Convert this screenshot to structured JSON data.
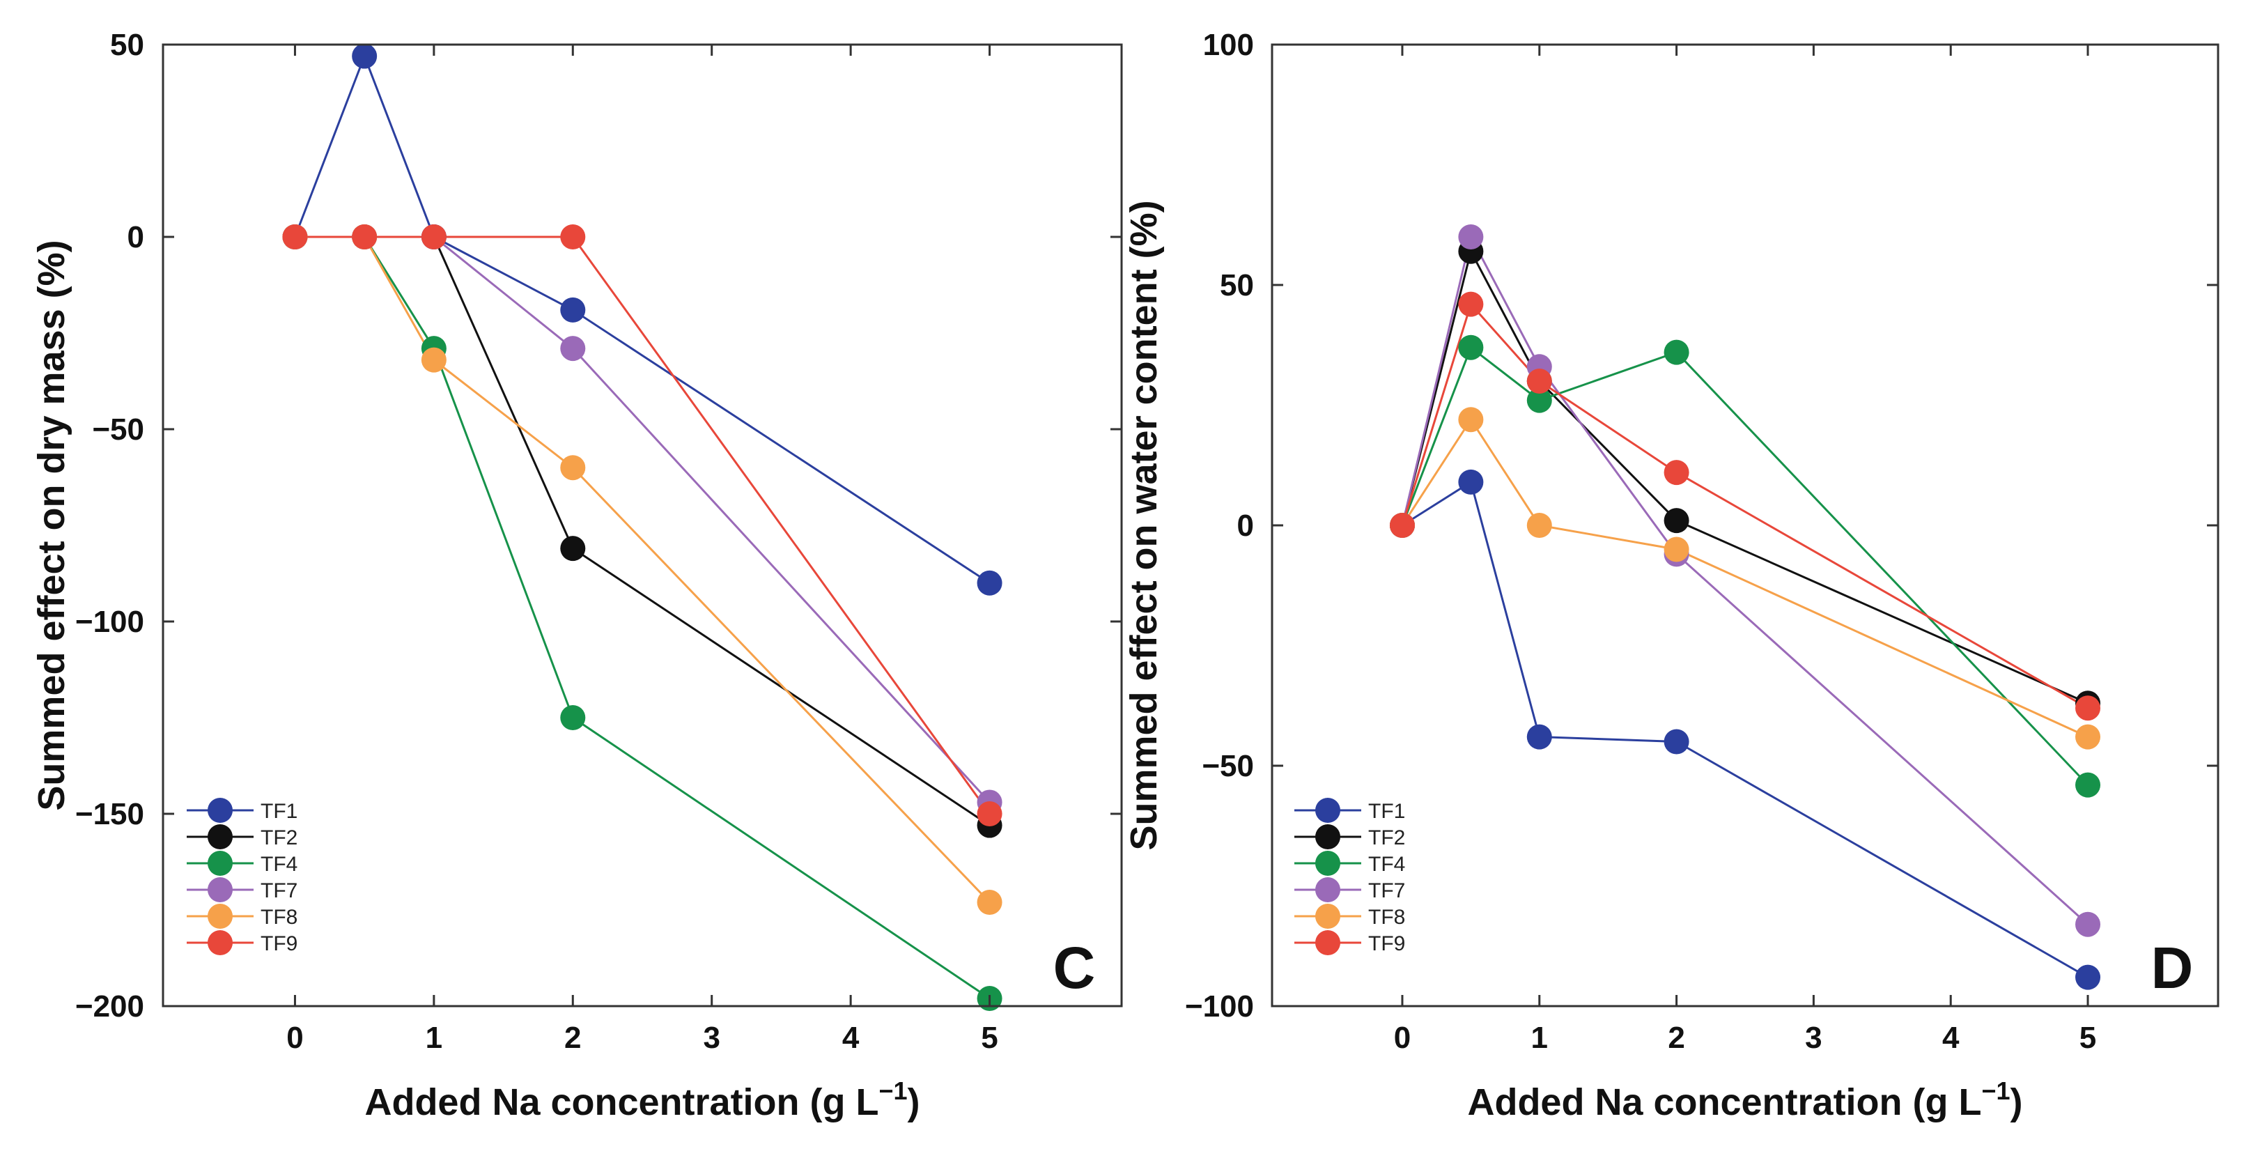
{
  "chart_data": [
    {
      "type": "line",
      "panel_label": "C",
      "xlabel": "Added Na concentration (g L",
      "xlabel_sup": "−1",
      "xlabel_end": ")",
      "ylabel": "Summed effect on dry mass (%)",
      "ylim": [
        -200,
        50
      ],
      "xticks": [
        "0",
        "1",
        "2",
        "3",
        "4",
        "5"
      ],
      "yticks": [
        "50",
        "0",
        "−50",
        "−100",
        "−150",
        "−200"
      ],
      "legend_position": "bottom-left",
      "x": [
        0,
        0.5,
        1,
        2,
        5
      ],
      "series": [
        {
          "name": "TF1",
          "color": "#2b3f9e",
          "values": [
            0,
            47,
            0,
            -19,
            -90
          ]
        },
        {
          "name": "TF2",
          "color": "#111111",
          "values": [
            0,
            0,
            0,
            -81,
            -153
          ]
        },
        {
          "name": "TF4",
          "color": "#16924a",
          "values": [
            0,
            0,
            -29,
            -125,
            -198
          ]
        },
        {
          "name": "TF7",
          "color": "#9a6ab8",
          "values": [
            0,
            0,
            0,
            -29,
            -147
          ]
        },
        {
          "name": "TF8",
          "color": "#f6a14a",
          "values": [
            0,
            0,
            -32,
            -60,
            -173
          ]
        },
        {
          "name": "TF9",
          "color": "#e8473a",
          "values": [
            0,
            0,
            0,
            0,
            -150
          ]
        }
      ]
    },
    {
      "type": "line",
      "panel_label": "D",
      "xlabel": "Added Na concentration (g L",
      "xlabel_sup": "−1",
      "xlabel_end": ")",
      "ylabel": "Summed effect on water content (%)",
      "ylim": [
        -100,
        100
      ],
      "xticks": [
        "0",
        "1",
        "2",
        "3",
        "4",
        "5"
      ],
      "yticks": [
        "100",
        "50",
        "0",
        "−50",
        "−100"
      ],
      "legend_position": "bottom-left",
      "x": [
        0,
        0.5,
        1,
        2,
        5
      ],
      "series": [
        {
          "name": "TF1",
          "color": "#2b3f9e",
          "values": [
            0,
            9,
            -44,
            -45,
            -94
          ]
        },
        {
          "name": "TF2",
          "color": "#111111",
          "values": [
            0,
            57,
            30,
            1,
            -37
          ]
        },
        {
          "name": "TF4",
          "color": "#16924a",
          "values": [
            0,
            37,
            26,
            36,
            -54
          ]
        },
        {
          "name": "TF7",
          "color": "#9a6ab8",
          "values": [
            0,
            60,
            33,
            -6,
            -83
          ]
        },
        {
          "name": "TF8",
          "color": "#f6a14a",
          "values": [
            0,
            22,
            0,
            -5,
            -44
          ]
        },
        {
          "name": "TF9",
          "color": "#e8473a",
          "values": [
            0,
            46,
            30,
            11,
            -38
          ]
        }
      ]
    }
  ]
}
